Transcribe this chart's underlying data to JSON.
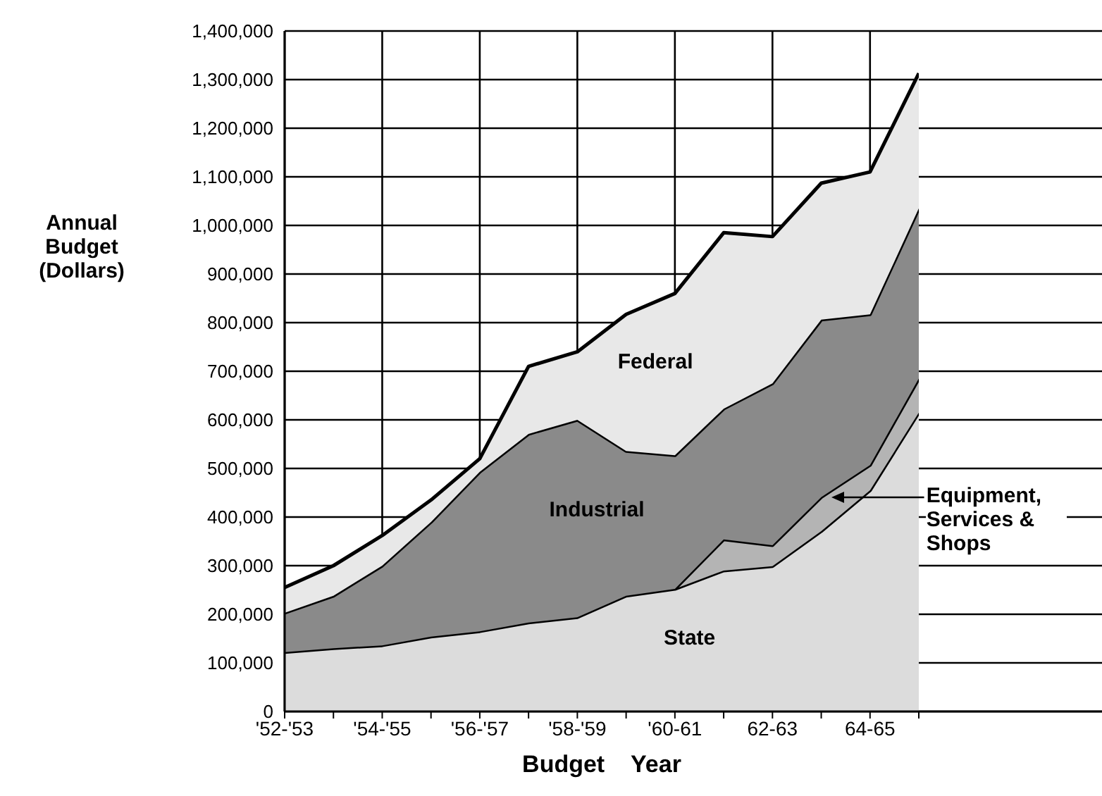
{
  "chart_data": {
    "type": "area",
    "stacked": true,
    "xlabel": "Budget Year",
    "ylabel": "Annual Budget (Dollars)",
    "categories": [
      "'52-'53",
      null,
      "'54-'55",
      null,
      "'56-'57",
      null,
      "'58-'59",
      null,
      "'60-61",
      null,
      "62-63",
      null,
      "64-65",
      null
    ],
    "series": [
      {
        "name": "State",
        "color": "#dcdcdc",
        "values": [
          122000,
          130000,
          136000,
          154000,
          165000,
          183000,
          194000,
          238000,
          252000,
          290000,
          299000,
          371000,
          455000,
          615000
        ]
      },
      {
        "name": "Equipment, Services & Shops",
        "color": "#b4b4b4",
        "values": [
          null,
          null,
          null,
          null,
          null,
          null,
          null,
          null,
          0,
          64000,
          43000,
          70000,
          52000,
          70000
        ]
      },
      {
        "name": "Industrial",
        "color": "#8a8a8a",
        "values": [
          81000,
          108000,
          164000,
          236000,
          328000,
          388000,
          406000,
          298000,
          275000,
          269000,
          333000,
          365000,
          310000,
          350000
        ]
      },
      {
        "name": "Federal",
        "color": "#e8e8e8",
        "values": [
          52000,
          62000,
          62000,
          45000,
          27000,
          139000,
          140000,
          281000,
          333000,
          362000,
          302000,
          281000,
          293000,
          278000
        ]
      }
    ],
    "ylim": [
      0,
      1400000
    ],
    "yticks": [
      0,
      {
        "value": 100000,
        "label": "100,000"
      },
      {
        "value": 200000,
        "label": "200,000"
      },
      {
        "value": 300000,
        "label": "300,000"
      },
      {
        "value": 400000,
        "label": "400,000"
      },
      {
        "value": 500000,
        "label": "500,000"
      },
      {
        "value": 600000,
        "label": "600,000"
      },
      {
        "value": 700000,
        "label": "700,000"
      },
      {
        "value": 800000,
        "label": "800,000"
      },
      {
        "value": 900000,
        "label": "900,000"
      },
      {
        "value": 1000000,
        "label": "1,000,000"
      },
      {
        "value": 1100000,
        "label": "1,100,000"
      },
      {
        "value": 1200000,
        "label": "1,200,000"
      },
      {
        "value": 1300000,
        "label": "1,300,000"
      },
      {
        "value": 1400000,
        "label": "1,400,000"
      }
    ],
    "grid": true
  }
}
